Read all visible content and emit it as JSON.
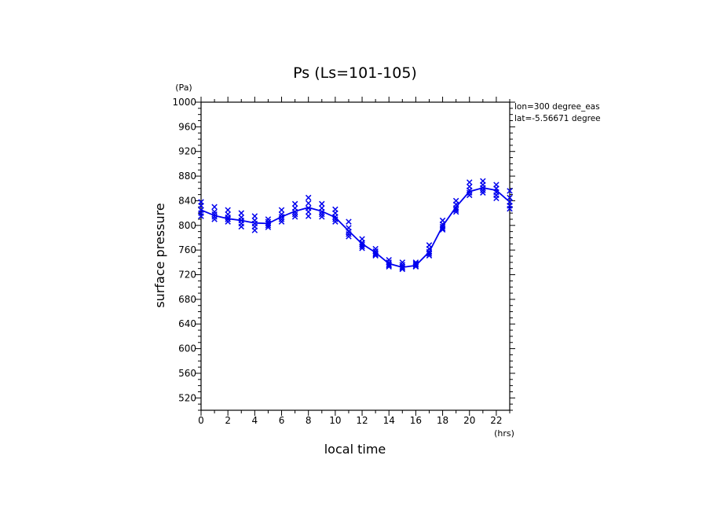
{
  "chart_data": {
    "type": "scatter",
    "title": "Ps (Ls=101-105)",
    "xlabel": "local time",
    "xunit": "(hrs)",
    "ylabel": "surface pressure",
    "yunit": "(Pa)",
    "xlim": [
      0,
      23
    ],
    "ylim": [
      500,
      1000
    ],
    "xticks": [
      0,
      2,
      4,
      6,
      8,
      10,
      12,
      14,
      16,
      18,
      20,
      22
    ],
    "yticks": [
      520,
      560,
      600,
      640,
      680,
      720,
      760,
      800,
      840,
      880,
      920,
      960,
      1000
    ],
    "annotations": [
      "lon=300 degree_eas",
      "lat=-5.56671 degree"
    ],
    "grid": false,
    "colors": {
      "series": "#0000ee",
      "axes": "#000000"
    },
    "series": [
      {
        "marker": "x-markers",
        "x": [
          0,
          1,
          2,
          3,
          4,
          5,
          6,
          7,
          8,
          9,
          10,
          11,
          12,
          13,
          14,
          15,
          16,
          17,
          18,
          19,
          20,
          21,
          22,
          23
        ],
        "values": [
          [
            838,
            832,
            825,
            820,
            815
          ],
          [
            830,
            822,
            818,
            814,
            810
          ],
          [
            825,
            818,
            813,
            810,
            806
          ],
          [
            820,
            813,
            808,
            803,
            798
          ],
          [
            815,
            808,
            803,
            798,
            792
          ],
          [
            810,
            806,
            803,
            800,
            797
          ],
          [
            825,
            818,
            814,
            810,
            806
          ],
          [
            835,
            828,
            822,
            818,
            814
          ],
          [
            845,
            836,
            828,
            822,
            815
          ],
          [
            835,
            828,
            822,
            818,
            814
          ],
          [
            826,
            820,
            814,
            810,
            806
          ],
          [
            806,
            796,
            790,
            786,
            782
          ],
          [
            778,
            772,
            769,
            766,
            763
          ],
          [
            762,
            758,
            755,
            753,
            751
          ],
          [
            744,
            740,
            737,
            735,
            733
          ],
          [
            740,
            736,
            733,
            731,
            729
          ],
          [
            740,
            738,
            736,
            734,
            733
          ],
          [
            768,
            762,
            757,
            754,
            751
          ],
          [
            808,
            802,
            798,
            795,
            793
          ],
          [
            840,
            834,
            828,
            825,
            822
          ],
          [
            870,
            863,
            857,
            853,
            849
          ],
          [
            872,
            866,
            861,
            857,
            853
          ],
          [
            866,
            860,
            854,
            849,
            844
          ],
          [
            856,
            845,
            838,
            832,
            827
          ]
        ]
      },
      {
        "marker": "line",
        "x": [
          0,
          1,
          2,
          3,
          4,
          5,
          6,
          7,
          8,
          9,
          10,
          11,
          12,
          13,
          14,
          15,
          16,
          17,
          18,
          19,
          20,
          21,
          22,
          23
        ],
        "values": [
          825,
          816,
          811,
          808,
          804,
          803,
          814,
          823,
          829,
          823,
          813,
          791,
          770,
          756,
          738,
          732,
          735,
          757,
          799,
          830,
          855,
          861,
          857,
          838
        ]
      }
    ]
  }
}
